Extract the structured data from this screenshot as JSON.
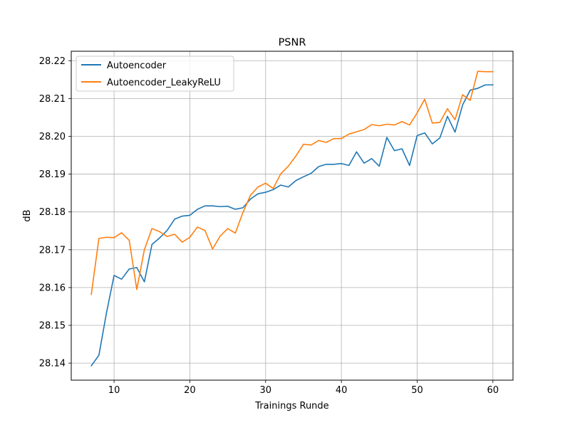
{
  "chart_data": {
    "type": "line",
    "title": "PSNR",
    "xlabel": "Trainings Runde",
    "ylabel": "dB",
    "xlim": [
      4.35,
      62.65
    ],
    "ylim": [
      28.1355,
      28.2225
    ],
    "x_ticks": [
      10,
      20,
      30,
      40,
      50,
      60
    ],
    "x_tick_labels": [
      "10",
      "20",
      "30",
      "40",
      "50",
      "60"
    ],
    "y_ticks": [
      28.14,
      28.15,
      28.16,
      28.17,
      28.18,
      28.19,
      28.2,
      28.21,
      28.22
    ],
    "y_tick_labels": [
      "28.14",
      "28.15",
      "28.16",
      "28.17",
      "28.18",
      "28.19",
      "28.20",
      "28.21",
      "28.22"
    ],
    "grid": true,
    "legend_position": "top-left",
    "x": [
      7,
      8,
      9,
      10,
      11,
      12,
      13,
      14,
      15,
      16,
      17,
      18,
      19,
      20,
      21,
      22,
      23,
      24,
      25,
      26,
      27,
      28,
      29,
      30,
      31,
      32,
      33,
      34,
      35,
      36,
      37,
      38,
      39,
      40,
      41,
      42,
      43,
      44,
      45,
      46,
      47,
      48,
      49,
      50,
      51,
      52,
      53,
      54,
      55,
      56,
      57,
      58,
      59,
      60
    ],
    "series": [
      {
        "name": "Autoencoder",
        "color": "#1f77b4",
        "values": [
          28.1393,
          28.1421,
          28.1533,
          28.1632,
          28.1622,
          28.1649,
          28.1653,
          28.1615,
          28.1714,
          28.1731,
          28.1751,
          28.1781,
          28.1789,
          28.1791,
          28.1807,
          28.1816,
          28.1816,
          28.1814,
          28.1815,
          28.1807,
          28.1811,
          28.1834,
          28.1848,
          28.1852,
          28.1859,
          28.1871,
          28.1866,
          28.1883,
          28.1893,
          28.1902,
          28.192,
          28.1926,
          28.1926,
          28.1928,
          28.1923,
          28.1959,
          28.1929,
          28.1941,
          28.1921,
          28.1997,
          28.1962,
          28.1967,
          28.1923,
          28.2002,
          28.2009,
          28.198,
          28.1996,
          28.2053,
          28.2011,
          28.2083,
          28.2122,
          28.2127,
          28.2136,
          28.2136
        ]
      },
      {
        "name": "Autoencoder_LeakyReLU",
        "color": "#ff7f0e",
        "values": [
          28.1582,
          28.173,
          28.1733,
          28.1732,
          28.1745,
          28.1725,
          28.1595,
          28.17,
          28.1756,
          28.1748,
          28.1735,
          28.1741,
          28.172,
          28.1733,
          28.176,
          28.1751,
          28.1702,
          28.1736,
          28.1756,
          28.1744,
          28.1798,
          28.1844,
          28.1866,
          28.1876,
          28.1862,
          28.1901,
          28.1921,
          28.1948,
          28.1979,
          28.1977,
          28.1989,
          28.1984,
          28.1994,
          28.1994,
          28.2006,
          28.2012,
          28.2018,
          28.2031,
          28.2028,
          28.2032,
          28.203,
          28.2039,
          28.203,
          28.2062,
          28.2098,
          28.2035,
          28.2037,
          28.2073,
          28.2044,
          28.211,
          28.2095,
          28.2172,
          28.2171,
          28.2171
        ]
      }
    ]
  }
}
